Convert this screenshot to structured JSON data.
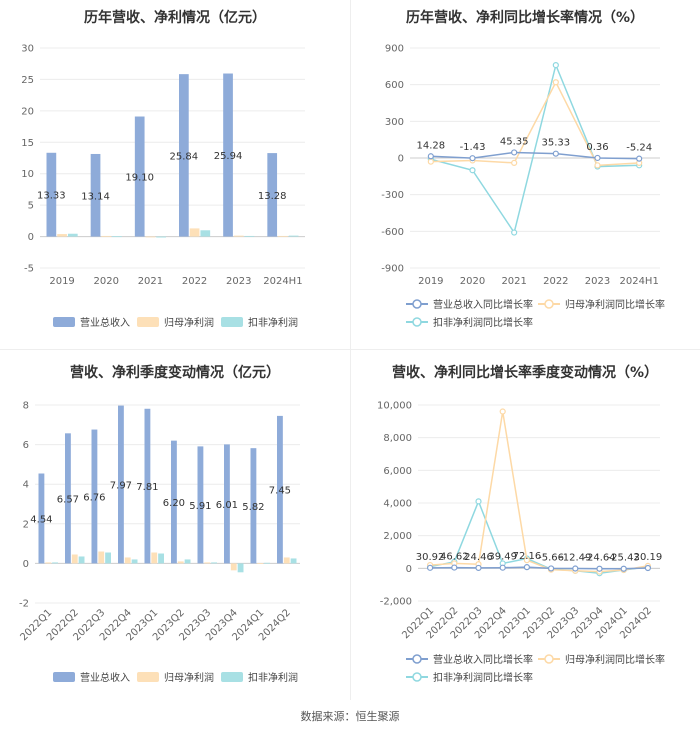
{
  "footer": {
    "source": "数据来源：恒生聚源"
  },
  "chart_data": [
    {
      "type": "bar",
      "title": "历年营收、净利情况（亿元）",
      "categories": [
        "2019",
        "2020",
        "2021",
        "2022",
        "2023",
        "2024H1"
      ],
      "ylim": [
        -5,
        30
      ],
      "yticks": [
        -5,
        0,
        5,
        10,
        15,
        20,
        25,
        30
      ],
      "grid": true,
      "legend": "bottom",
      "series": [
        {
          "name": "营业总收入",
          "color": "#8eabd9",
          "values": [
            13.33,
            13.14,
            19.1,
            25.84,
            25.94,
            13.28
          ],
          "labels": [
            "13.33",
            "13.14",
            "19.10",
            "25.84",
            "25.94",
            "13.28"
          ]
        },
        {
          "name": "归母净利润",
          "color": "#fde0b8",
          "values": [
            0.4,
            0.1,
            -0.1,
            1.3,
            0.15,
            0.1
          ]
        },
        {
          "name": "扣非净利润",
          "color": "#a8e0e4",
          "values": [
            0.45,
            0.05,
            -0.15,
            1.0,
            0.1,
            0.15
          ]
        }
      ]
    },
    {
      "type": "line",
      "title": "历年营收、净利同比增长率情况（%）",
      "categories": [
        "2019",
        "2020",
        "2021",
        "2022",
        "2023",
        "2024H1"
      ],
      "ylim": [
        -900,
        900
      ],
      "yticks": [
        -900,
        -600,
        -300,
        0,
        300,
        600,
        900
      ],
      "grid": true,
      "legend": "bottom",
      "series": [
        {
          "name": "营业总收入同比增长率",
          "color": "#7f9fcf",
          "values": [
            14.28,
            -1.43,
            45.35,
            35.33,
            0.36,
            -5.24
          ],
          "labels": [
            "14.28",
            "-1.43",
            "45.35",
            "35.33",
            "0.36",
            "-5.24"
          ]
        },
        {
          "name": "归母净利润同比增长率",
          "color": "#fdd9a6",
          "values": [
            -30,
            -20,
            -40,
            620,
            -60,
            -40
          ]
        },
        {
          "name": "扣非净利润同比增长率",
          "color": "#8fd8e0",
          "values": [
            -10,
            -100,
            -610,
            760,
            -70,
            -60
          ]
        }
      ]
    },
    {
      "type": "bar",
      "title": "营收、净利季度变动情况（亿元）",
      "categories": [
        "2022Q1",
        "2022Q2",
        "2022Q3",
        "2022Q4",
        "2023Q1",
        "2023Q2",
        "2023Q3",
        "2023Q4",
        "2024Q1",
        "2024Q2"
      ],
      "ylim": [
        -2,
        8
      ],
      "yticks": [
        -2,
        0,
        2,
        4,
        6,
        8
      ],
      "grid": true,
      "legend": "bottom",
      "series": [
        {
          "name": "营业总收入",
          "color": "#8eabd9",
          "values": [
            4.54,
            6.57,
            6.76,
            7.97,
            7.81,
            6.2,
            5.91,
            6.01,
            5.82,
            7.45
          ],
          "labels": [
            "4.54",
            "6.57",
            "6.76",
            "7.97",
            "7.81",
            "6.20",
            "5.91",
            "6.01",
            "5.82",
            "7.45"
          ]
        },
        {
          "name": "归母净利润",
          "color": "#fde0b8",
          "values": [
            0.05,
            0.45,
            0.6,
            0.3,
            0.55,
            0.1,
            0.05,
            -0.35,
            0.02,
            0.3
          ]
        },
        {
          "name": "扣非净利润",
          "color": "#a8e0e4",
          "values": [
            0.05,
            0.35,
            0.55,
            0.2,
            0.5,
            0.2,
            0.05,
            -0.45,
            0.03,
            0.25
          ]
        }
      ]
    },
    {
      "type": "line",
      "title": "营收、净利同比增长率季度变动情况（%）",
      "categories": [
        "2022Q1",
        "2022Q2",
        "2022Q3",
        "2022Q4",
        "2023Q1",
        "2023Q2",
        "2023Q3",
        "2023Q4",
        "2024Q1",
        "2024Q2"
      ],
      "ylim": [
        -2000,
        10000
      ],
      "yticks": [
        -2000,
        0,
        2000,
        4000,
        6000,
        8000,
        10000
      ],
      "grid": true,
      "legend": "bottom",
      "series": [
        {
          "name": "营业总收入同比增长率",
          "color": "#7f9fcf",
          "values": [
            30.92,
            46.62,
            24.46,
            39.49,
            72.16,
            -5.66,
            -12.49,
            -24.64,
            -25.43,
            20.19
          ],
          "labels": [
            "30.92",
            "46.62",
            "24.46",
            "39.49",
            "72.16",
            "-5.66",
            "-12.49",
            "-24.64",
            "-25.43",
            "20.19"
          ]
        },
        {
          "name": "归母净利润同比增长率",
          "color": "#fdd9a6",
          "values": [
            200,
            300,
            250,
            9600,
            500,
            -80,
            -150,
            -200,
            -100,
            150
          ]
        },
        {
          "name": "扣非净利润同比增长率",
          "color": "#8fd8e0",
          "values": [
            100,
            400,
            4100,
            300,
            600,
            -50,
            -150,
            -300,
            -100,
            100
          ]
        }
      ]
    }
  ]
}
